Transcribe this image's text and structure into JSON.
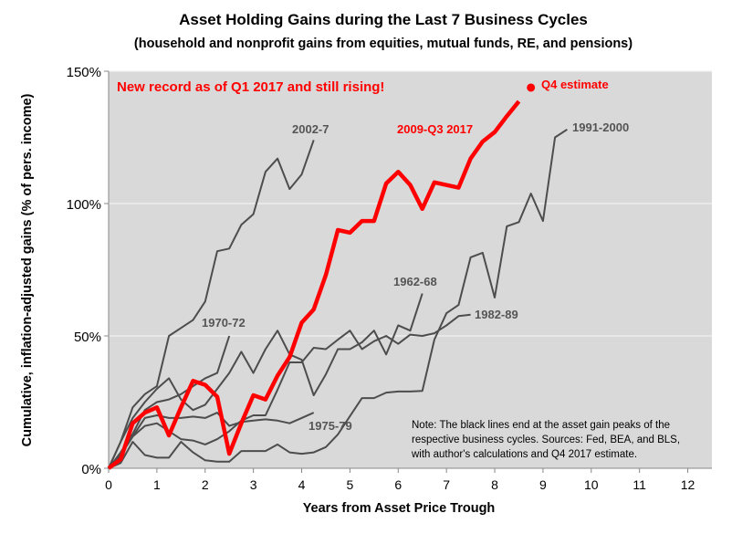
{
  "chart_data": {
    "type": "line",
    "title": "Asset Holding Gains during the Last 7 Business Cycles",
    "subtitle": "(household and nonprofit gains from equities, mutual funds, RE, and pensions)",
    "xlabel": "Years from Asset Price Trough",
    "ylabel": "Cumulative, inflation-adjusted gains (% of pers. income)",
    "xlim": [
      0,
      12.5
    ],
    "ylim": [
      0,
      150
    ],
    "x_ticks": [
      "0",
      "1",
      "2",
      "3",
      "4",
      "5",
      "6",
      "7",
      "8",
      "9",
      "10",
      "11",
      "12"
    ],
    "y_ticks": [
      "0%",
      "50%",
      "100%",
      "150%"
    ],
    "grid": "horizontal",
    "background": "#d9d9d9",
    "x_step": 0.25,
    "series": [
      {
        "name": "2002-7",
        "color": "#4d4d4d",
        "start": 0,
        "values": [
          0,
          10,
          23,
          28,
          31,
          50,
          53,
          56,
          63,
          82,
          83,
          92,
          96,
          112,
          117,
          105.5,
          111,
          124
        ]
      },
      {
        "name": "1970-72",
        "color": "#4d4d4d",
        "start": 0,
        "values": [
          0,
          6,
          13,
          22,
          25,
          26,
          28,
          31,
          34,
          36,
          50
        ]
      },
      {
        "name": "1975-79",
        "color": "#4d4d4d",
        "start": 0,
        "values": [
          0,
          5,
          12,
          19,
          20,
          19,
          19,
          19.5,
          19,
          21,
          16,
          17.5,
          18,
          18.5,
          18,
          17,
          19,
          21
        ]
      },
      {
        "name": "1962-68",
        "color": "#4d4d4d",
        "start": 0,
        "values": [
          0,
          10,
          19,
          25,
          30,
          34,
          26,
          22,
          24,
          30,
          36,
          44,
          36,
          45,
          52,
          43,
          41,
          27.6,
          35.5,
          45,
          45,
          47.6,
          52,
          43,
          54,
          52,
          66
        ]
      },
      {
        "name": "1982-89",
        "color": "#4d4d4d",
        "start": 0,
        "values": [
          0,
          5,
          12,
          16,
          17,
          14,
          11,
          10.5,
          9,
          11,
          14,
          18,
          20,
          20,
          29.7,
          40,
          40,
          45.5,
          45,
          48.6,
          52,
          45,
          48,
          50,
          47,
          50.5,
          50,
          51,
          54,
          57.5,
          58
        ]
      },
      {
        "name": "1991-2000",
        "color": "#4d4d4d",
        "start": 0,
        "values": [
          0,
          2,
          10,
          5,
          4,
          4,
          10,
          6,
          3,
          2.5,
          2.5,
          6.5,
          6.5,
          6.5,
          9,
          6,
          5.5,
          6,
          8,
          12.8,
          19.7,
          26.5,
          26.5,
          28.6,
          29,
          29,
          29.2,
          48.6,
          58.6,
          61.7,
          79.7,
          81.4,
          64.5,
          91.4,
          93,
          103.8,
          93.4,
          125,
          128
        ]
      },
      {
        "name": "2009-Q3 2017",
        "color": "#ff0000",
        "start": 0,
        "values": [
          0,
          3.4,
          17,
          21,
          23,
          12.4,
          23,
          33,
          31.5,
          27,
          5.5,
          17,
          27.6,
          26,
          35,
          42,
          55,
          60,
          73,
          90,
          89,
          93.4,
          93.4,
          107.6,
          112,
          107,
          98,
          108,
          107,
          106,
          117,
          123.4,
          127,
          133,
          138.6
        ]
      }
    ],
    "estimate_point": {
      "label": "Q4 estimate",
      "x": 8.75,
      "y": 143.8,
      "color": "#ff0000"
    },
    "annotations": {
      "headline": "New record as of Q1 2017 and still rising!",
      "note_lines": [
        "Note: The black lines end at the asset gain peaks of the",
        "respective business cycles. Sources: Fed, BEA, and BLS,",
        "with author's calculations and Q4 2017 estimate."
      ]
    }
  }
}
